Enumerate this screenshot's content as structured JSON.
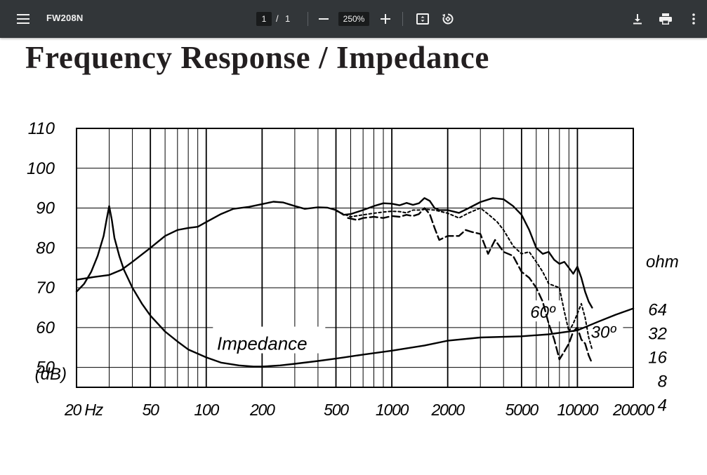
{
  "viewer": {
    "doc_name": "FW208N",
    "page_current": "1",
    "page_separator": "/",
    "page_total": "1",
    "zoom": "250%",
    "icons": {
      "menu": "hamburger-menu-icon",
      "zoom_out": "minus-icon",
      "zoom_in": "plus-icon",
      "fit": "fit-to-page-icon",
      "rotate": "rotate-icon",
      "download": "download-icon",
      "print": "print-icon",
      "more": "more-vert-icon"
    },
    "colors": {
      "toolbar": "#323639",
      "toolbar_text": "#f1f1f1"
    }
  },
  "document": {
    "title": "Frequency Response / Impedance"
  },
  "chart_data": {
    "type": "line",
    "title": "Frequency Response / Impedance",
    "x_scale": "log",
    "xlim": [
      20,
      20000
    ],
    "ylim": [
      45,
      110
    ],
    "x_ticks": [
      {
        "value": 20,
        "label": "20 Hz"
      },
      {
        "value": 50,
        "label": "50"
      },
      {
        "value": 100,
        "label": "100"
      },
      {
        "value": 200,
        "label": "200"
      },
      {
        "value": 500,
        "label": "500"
      },
      {
        "value": 1000,
        "label": "1000"
      },
      {
        "value": 2000,
        "label": "2000"
      },
      {
        "value": 5000,
        "label": "5000"
      },
      {
        "value": 10000,
        "label": "10000"
      },
      {
        "value": 20000,
        "label": "20000"
      }
    ],
    "y_ticks_db": [
      {
        "value": 110,
        "label": "110"
      },
      {
        "value": 100,
        "label": "100"
      },
      {
        "value": 90,
        "label": "90"
      },
      {
        "value": 80,
        "label": "80"
      },
      {
        "value": 70,
        "label": "70"
      },
      {
        "value": 60,
        "label": "60"
      },
      {
        "value": 50,
        "label": "50"
      }
    ],
    "y_unit_left": "(dB)",
    "y_unit_right": "ohm",
    "y_ticks_ohm": [
      {
        "db": 64.5,
        "label": "64"
      },
      {
        "db": 58.5,
        "label": "32"
      },
      {
        "db": 52.5,
        "label": "16"
      },
      {
        "db": 46.5,
        "label": "8"
      },
      {
        "db": 40.5,
        "label": "4"
      }
    ],
    "grid": true,
    "annotations": [
      {
        "text": "Impedance",
        "x": 200,
        "y": 56
      },
      {
        "text": "60º",
        "x": 6500,
        "y": 64
      },
      {
        "text": "30º",
        "x": 13800,
        "y": 59
      }
    ],
    "series": [
      {
        "style": "solid",
        "points": [
          [
            20,
            72
          ],
          [
            25,
            72.7
          ],
          [
            30,
            73.2
          ],
          [
            35,
            74.5
          ],
          [
            40,
            76.5
          ],
          [
            50,
            80
          ],
          [
            60,
            83
          ],
          [
            70,
            84.5
          ],
          [
            80,
            85
          ],
          [
            90,
            85.3
          ],
          [
            100,
            86.5
          ],
          [
            120,
            88.5
          ],
          [
            140,
            89.8
          ],
          [
            170,
            90.3
          ],
          [
            200,
            91
          ],
          [
            230,
            91.6
          ],
          [
            260,
            91.4
          ],
          [
            300,
            90.5
          ],
          [
            340,
            89.8
          ],
          [
            400,
            90.2
          ],
          [
            450,
            90.1
          ],
          [
            500,
            89.5
          ],
          [
            550,
            88.3
          ],
          [
            600,
            88.5
          ],
          [
            700,
            89.5
          ],
          [
            800,
            90.5
          ],
          [
            900,
            91.2
          ],
          [
            1000,
            91.1
          ],
          [
            1100,
            90.7
          ],
          [
            1200,
            91.3
          ],
          [
            1300,
            90.8
          ],
          [
            1400,
            91.2
          ],
          [
            1500,
            92.5
          ],
          [
            1600,
            91.8
          ],
          [
            1700,
            90
          ],
          [
            1800,
            89.5
          ],
          [
            2000,
            89.5
          ],
          [
            2300,
            88.8
          ],
          [
            2600,
            90
          ],
          [
            3000,
            91.5
          ],
          [
            3500,
            92.5
          ],
          [
            4000,
            92.2
          ],
          [
            4500,
            90.5
          ],
          [
            5000,
            88.3
          ],
          [
            5500,
            84.5
          ],
          [
            6000,
            80
          ],
          [
            6500,
            78.5
          ],
          [
            7000,
            79
          ],
          [
            7500,
            77
          ],
          [
            8000,
            76
          ],
          [
            8500,
            76.5
          ],
          [
            9000,
            75
          ],
          [
            9500,
            73.5
          ],
          [
            10000,
            75.3
          ],
          [
            10500,
            72.5
          ],
          [
            11000,
            69
          ],
          [
            11500,
            66.5
          ],
          [
            12000,
            65
          ]
        ]
      },
      {
        "style": "dotted",
        "points": [
          [
            500,
            89.3
          ],
          [
            550,
            88.5
          ],
          [
            600,
            87.8
          ],
          [
            700,
            88.3
          ],
          [
            800,
            88.7
          ],
          [
            900,
            89
          ],
          [
            1000,
            89.2
          ],
          [
            1100,
            89.1
          ],
          [
            1200,
            88.8
          ],
          [
            1300,
            89.5
          ],
          [
            1400,
            89.5
          ],
          [
            1500,
            89.7
          ],
          [
            1700,
            89.5
          ],
          [
            2000,
            88.7
          ],
          [
            2300,
            87.5
          ],
          [
            2600,
            88.8
          ],
          [
            3000,
            90
          ],
          [
            3300,
            88.5
          ],
          [
            3700,
            86.5
          ],
          [
            4000,
            84.5
          ],
          [
            4500,
            80.5
          ],
          [
            5000,
            78.5
          ],
          [
            5500,
            79
          ],
          [
            6000,
            76.5
          ],
          [
            6500,
            74
          ],
          [
            7000,
            71
          ],
          [
            8000,
            70
          ],
          [
            8500,
            64
          ],
          [
            9000,
            59
          ],
          [
            9500,
            61
          ],
          [
            10000,
            63.5
          ],
          [
            10500,
            66
          ],
          [
            11000,
            62.5
          ],
          [
            11500,
            57.5
          ],
          [
            12000,
            54.5
          ]
        ]
      },
      {
        "style": "dashed",
        "points": [
          [
            580,
            87.5
          ],
          [
            650,
            87
          ],
          [
            700,
            87.5
          ],
          [
            800,
            87.8
          ],
          [
            900,
            87.5
          ],
          [
            1000,
            88
          ],
          [
            1100,
            87.8
          ],
          [
            1200,
            88.3
          ],
          [
            1300,
            88
          ],
          [
            1400,
            88.5
          ],
          [
            1500,
            90
          ],
          [
            1600,
            88.5
          ],
          [
            1700,
            85
          ],
          [
            1800,
            82
          ],
          [
            2000,
            83
          ],
          [
            2300,
            83
          ],
          [
            2500,
            84.5
          ],
          [
            2700,
            84
          ],
          [
            3000,
            83.5
          ],
          [
            3300,
            78.5
          ],
          [
            3600,
            82
          ],
          [
            4000,
            79
          ],
          [
            4500,
            78
          ],
          [
            5000,
            74
          ],
          [
            5500,
            72.5
          ],
          [
            6000,
            70
          ],
          [
            6500,
            66.5
          ],
          [
            7000,
            61
          ],
          [
            7500,
            57
          ],
          [
            8000,
            52
          ],
          [
            8500,
            54
          ],
          [
            9000,
            56
          ],
          [
            9500,
            59
          ],
          [
            10000,
            60
          ],
          [
            10500,
            57
          ],
          [
            11000,
            56
          ],
          [
            11500,
            53
          ],
          [
            12000,
            51
          ]
        ]
      },
      {
        "name": "Impedance",
        "style": "solid",
        "points": [
          [
            20,
            69
          ],
          [
            22,
            71
          ],
          [
            24,
            74
          ],
          [
            26,
            78
          ],
          [
            28,
            83
          ],
          [
            29,
            87
          ],
          [
            30,
            90.5
          ],
          [
            31,
            87
          ],
          [
            32,
            82.5
          ],
          [
            34,
            78
          ],
          [
            36,
            74.5
          ],
          [
            40,
            70
          ],
          [
            45,
            66
          ],
          [
            50,
            63
          ],
          [
            60,
            59
          ],
          [
            70,
            56.5
          ],
          [
            80,
            54.5
          ],
          [
            100,
            52.5
          ],
          [
            120,
            51.2
          ],
          [
            150,
            50.5
          ],
          [
            180,
            50.2
          ],
          [
            200,
            50.2
          ],
          [
            250,
            50.5
          ],
          [
            300,
            50.9
          ],
          [
            400,
            51.6
          ],
          [
            500,
            52.2
          ],
          [
            700,
            53.2
          ],
          [
            1000,
            54.2
          ],
          [
            1500,
            55.5
          ],
          [
            2000,
            56.7
          ],
          [
            3000,
            57.5
          ],
          [
            5000,
            57.8
          ],
          [
            7000,
            58.3
          ],
          [
            10000,
            59.3
          ],
          [
            13000,
            61.5
          ],
          [
            16000,
            63.2
          ],
          [
            20000,
            64.8
          ]
        ]
      }
    ]
  }
}
